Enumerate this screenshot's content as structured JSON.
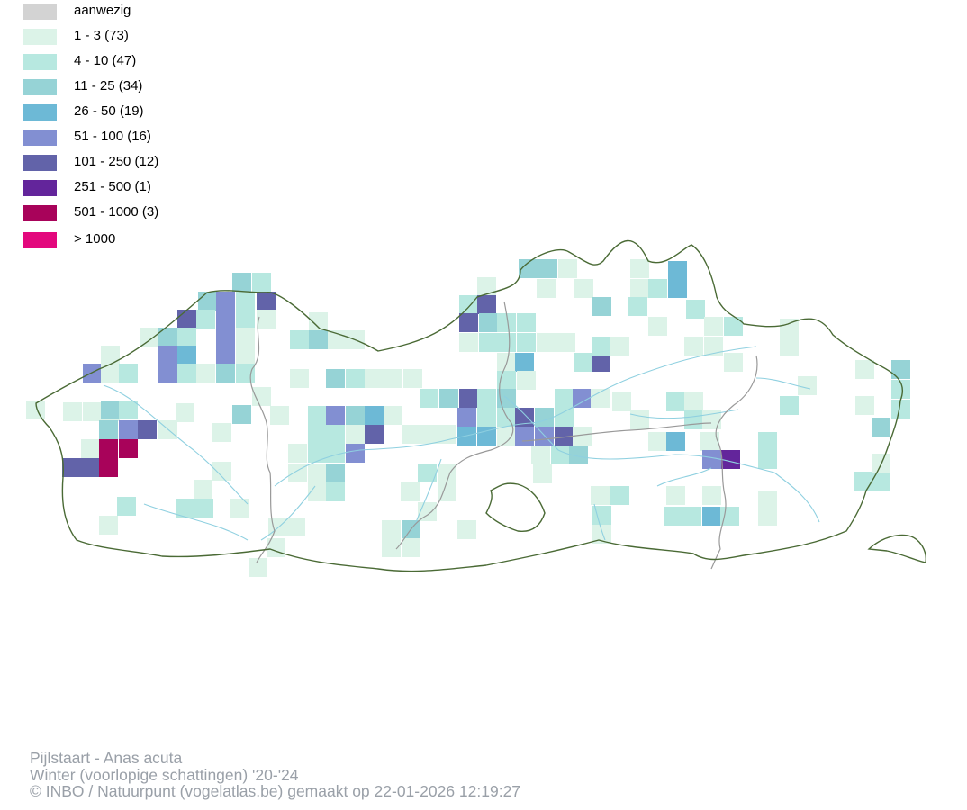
{
  "legend": {
    "items": [
      {
        "label": "aanwezig",
        "color": "#d3d3d3"
      },
      {
        "label": "1 - 3 (73)",
        "color": "#dcf3e8"
      },
      {
        "label": "4 - 10 (47)",
        "color": "#b7e8e0"
      },
      {
        "label": "11 - 25 (34)",
        "color": "#96d3d6"
      },
      {
        "label": "26 - 50 (19)",
        "color": "#6db9d6"
      },
      {
        "label": "51 - 100 (16)",
        "color": "#828fd2"
      },
      {
        "label": "101 - 250 (12)",
        "color": "#6263a9"
      },
      {
        "label": "251 - 500 (1)",
        "color": "#63259b"
      },
      {
        "label": "501 - 1000 (3)",
        "color": "#a8035a"
      },
      {
        "label": "> 1000",
        "color": "#e3087d"
      }
    ]
  },
  "footer": {
    "species": "Pijlstaart - Anas acuta",
    "season": "Winter (voorlopige schattingen) '20-'24",
    "credit": "© INBO / Natuurpunt (vogelatlas.be) gemaakt op 22-01-2026 12:19:27"
  },
  "map_style": {
    "border_color": "#4a6a35",
    "province_color": "#999999",
    "river_color": "#8fd0e0"
  }
}
